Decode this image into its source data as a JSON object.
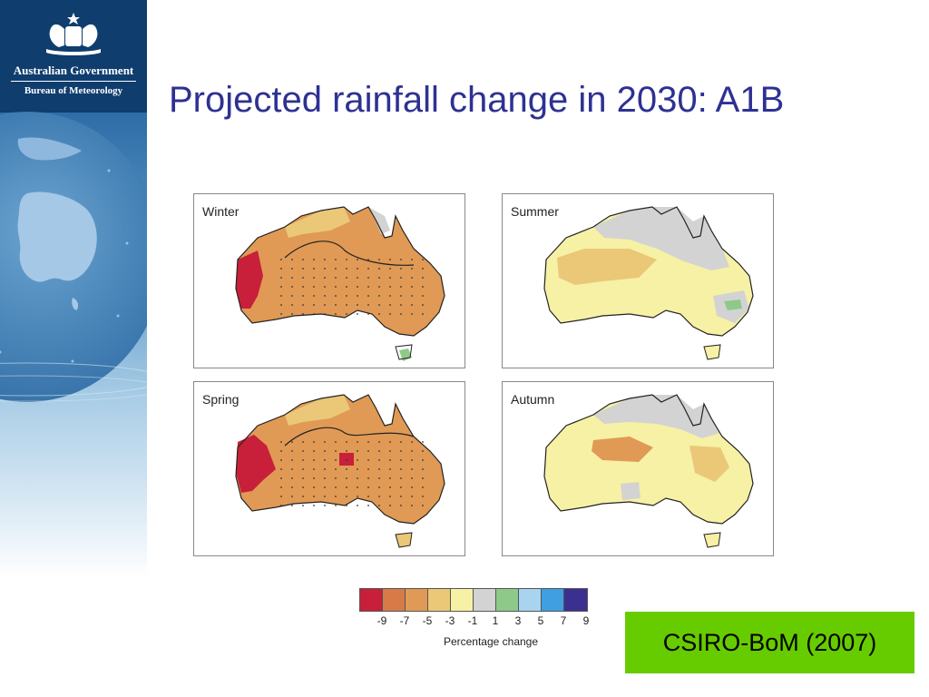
{
  "branding": {
    "organisation": "Australian Government",
    "agency": "Bureau of Meteorology",
    "crest_icon": "commonwealth-coat-of-arms-icon",
    "colors": {
      "header_bg": "#0f3d6e"
    }
  },
  "slide": {
    "title": "Projected rainfall change in 2030: A1B",
    "title_color": "#2e3192"
  },
  "maps": [
    {
      "label": "Winter"
    },
    {
      "label": "Summer"
    },
    {
      "label": "Spring"
    },
    {
      "label": "Autumn"
    }
  ],
  "legend": {
    "ticks": [
      "-9",
      "-7",
      "-5",
      "-3",
      "-1",
      "1",
      "3",
      "5",
      "7",
      "9"
    ],
    "title": "Percentage change",
    "colors": [
      "#c8203a",
      "#d87a48",
      "#e09a55",
      "#eac878",
      "#f6f1a4",
      "#d3d3d3",
      "#8fc98a",
      "#a8d4f0",
      "#3f9fe0",
      "#3b2f8f"
    ]
  },
  "source": {
    "text": "CSIRO-BoM (2007)",
    "color": "#66cc00"
  }
}
